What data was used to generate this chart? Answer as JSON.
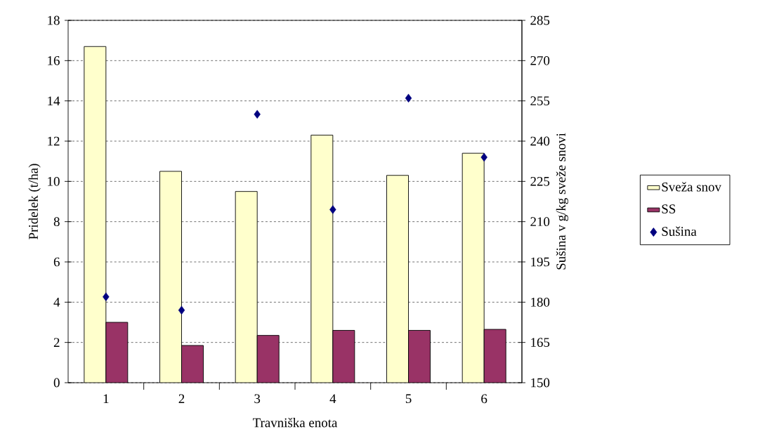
{
  "chart_data": {
    "type": "bar",
    "xlabel": "Travniška enota",
    "ylabel": "Pridelek (t/ha)",
    "y2label": "Sušina v g/kg sveže snovi",
    "categories": [
      "1",
      "2",
      "3",
      "4",
      "5",
      "6"
    ],
    "series": [
      {
        "name": "Sveža snov",
        "color": "#ffffcc",
        "values": [
          16.7,
          10.5,
          9.5,
          12.3,
          10.3,
          11.4
        ]
      },
      {
        "name": "SS",
        "color": "#993366",
        "values": [
          3.0,
          1.85,
          2.35,
          2.6,
          2.6,
          2.65
        ]
      },
      {
        "name": "Sušina",
        "type": "scatter",
        "axis": "y2",
        "marker": "diamond",
        "color": "#000080",
        "x": [
          "1",
          "2",
          "3",
          "4",
          "5",
          "6"
        ],
        "values": [
          182,
          177,
          250,
          214.5,
          256,
          234
        ]
      }
    ],
    "ylim": [
      0,
      18
    ],
    "yticks": [
      0,
      2,
      4,
      6,
      8,
      10,
      12,
      14,
      16,
      18
    ],
    "y2lim": [
      150,
      285
    ],
    "y2ticks": [
      150,
      165,
      180,
      195,
      210,
      225,
      240,
      255,
      270,
      285
    ],
    "grid": "y",
    "legend": "right"
  }
}
